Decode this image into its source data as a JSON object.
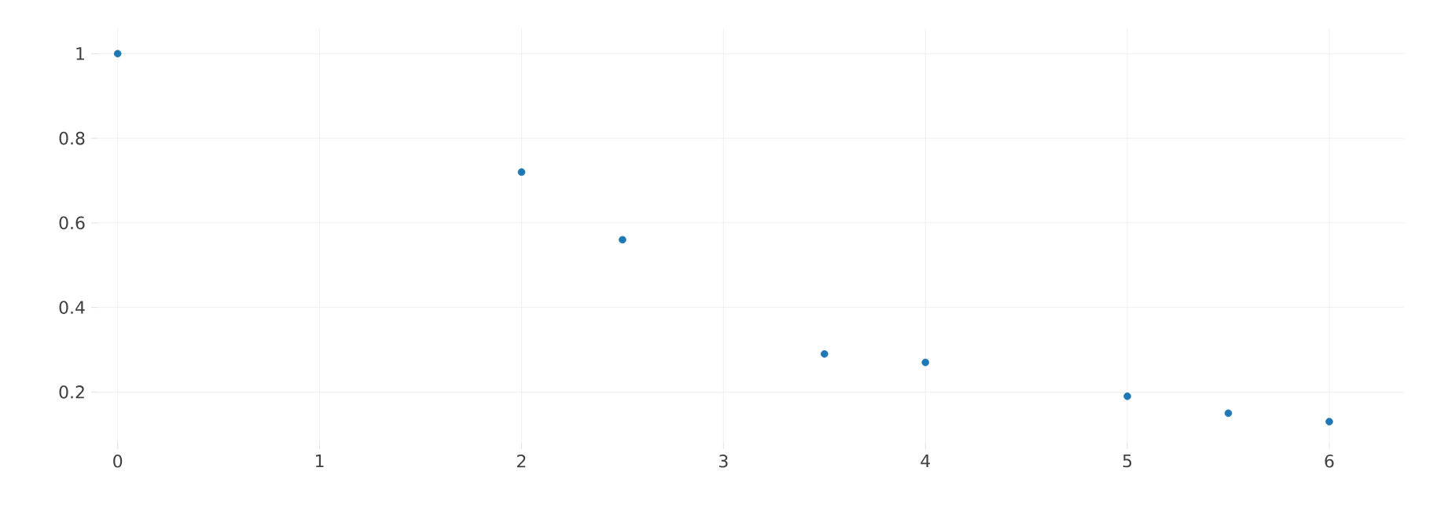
{
  "chart_data": {
    "type": "scatter",
    "x": [
      0,
      2,
      2.5,
      3.5,
      4,
      5,
      5.5,
      6
    ],
    "values": [
      1,
      0.72,
      0.56,
      0.29,
      0.27,
      0.19,
      0.15,
      0.13
    ],
    "color": "#1f77b4",
    "grid": true,
    "xlim": [
      -0.1,
      6.37
    ],
    "ylim": [
      0.08,
      1.06
    ],
    "xticks": [
      0,
      1,
      2,
      3,
      4,
      5,
      6
    ],
    "yticks": [
      0.2,
      0.4,
      0.6,
      0.8,
      1
    ]
  }
}
